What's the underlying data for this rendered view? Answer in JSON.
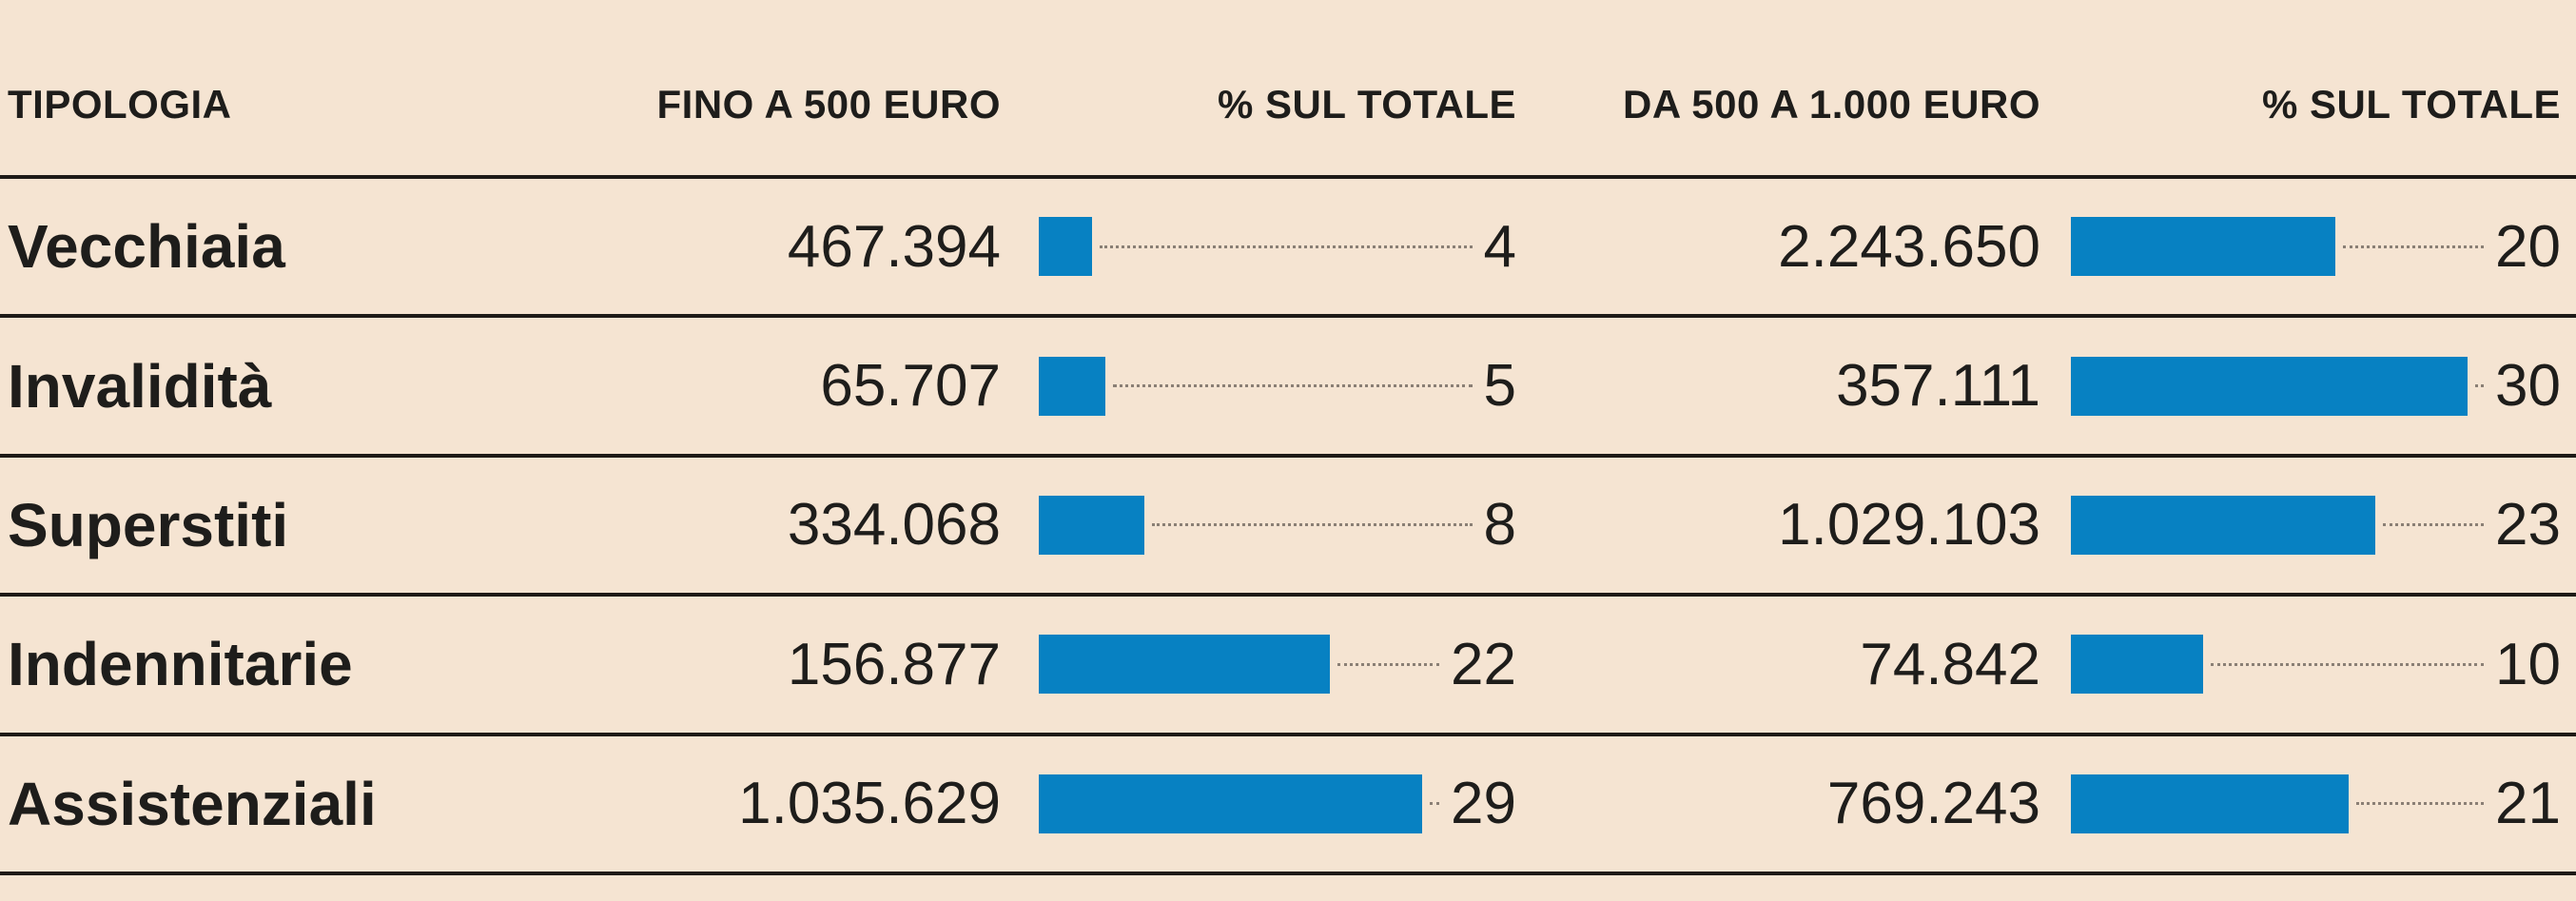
{
  "table": {
    "columns": [
      {
        "label": "TIPOLOGIA"
      },
      {
        "label": "FINO A 500 EURO"
      },
      {
        "label": "% SUL TOTALE"
      },
      {
        "label": "DA 500 A 1.000 EURO"
      },
      {
        "label": "% SUL TOTALE"
      }
    ],
    "rows": [
      {
        "tipologia": "Vecchiaia",
        "fino_500": "467.394",
        "pct_500": 4,
        "da_500_1000": "2.243.650",
        "pct_1000": 20
      },
      {
        "tipologia": "Invalidità",
        "fino_500": "65.707",
        "pct_500": 5,
        "da_500_1000": "357.111",
        "pct_1000": 30
      },
      {
        "tipologia": "Superstiti",
        "fino_500": "334.068",
        "pct_500": 8,
        "da_500_1000": "1.029.103",
        "pct_1000": 23
      },
      {
        "tipologia": "Indennitarie",
        "fino_500": "156.877",
        "pct_500": 22,
        "da_500_1000": "74.842",
        "pct_1000": 10
      },
      {
        "tipologia": "Assistenziali",
        "fino_500": "1.035.629",
        "pct_500": 29,
        "da_500_1000": "769.243",
        "pct_1000": 21
      }
    ]
  },
  "chart_data": {
    "type": "bar",
    "orientation": "horizontal",
    "categories": [
      "Vecchiaia",
      "Invalidità",
      "Superstiti",
      "Indennitarie",
      "Assistenziali"
    ],
    "series": [
      {
        "name": "FINO A 500 EURO",
        "values": [
          467394,
          65707,
          334068,
          156877,
          1035629
        ]
      },
      {
        "name": "% SUL TOTALE (fino a 500 euro)",
        "values": [
          4,
          5,
          8,
          22,
          29
        ]
      },
      {
        "name": "DA 500 A 1.000 EURO",
        "values": [
          2243650,
          357111,
          1029103,
          74842,
          769243
        ]
      },
      {
        "name": "% SUL TOTALE (da 500 a 1.000 euro)",
        "values": [
          20,
          30,
          23,
          10,
          21
        ]
      }
    ],
    "title": "",
    "xlabel": "TIPOLOGIA",
    "ylabel": "",
    "legend": false,
    "bars_represent": "percentage columns (% SUL TOTALE)",
    "bar_value_range": [
      0,
      30
    ],
    "grid": false
  },
  "colors": {
    "background": "#f5e4d2",
    "bar": "#0781c2",
    "text": "#1e1d1b",
    "rule_line": "#1e1a17",
    "dotted_leader": "#8a7f75"
  }
}
